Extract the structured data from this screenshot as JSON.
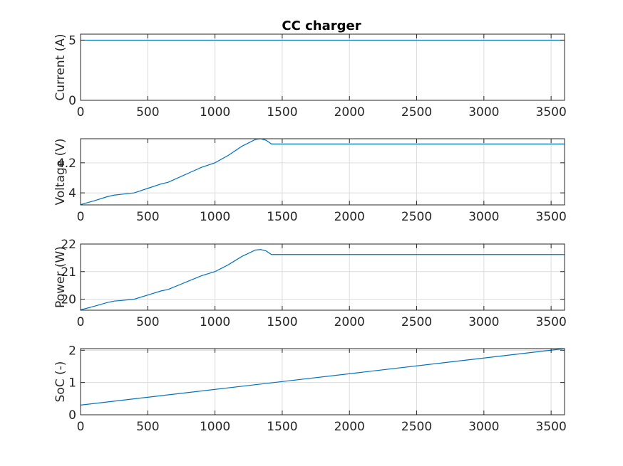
{
  "title": "CC charger",
  "colors": {
    "series": "#0072bd",
    "grid": "#dcdcdc",
    "axis": "#262626"
  },
  "chart_data": [
    {
      "type": "line",
      "ylabel": "Current (A)",
      "xlim": [
        0,
        3600
      ],
      "ylim": [
        0,
        5.5
      ],
      "xticks": [
        0,
        500,
        1000,
        1500,
        2000,
        2500,
        3000,
        3500
      ],
      "yticks": [
        0,
        5
      ],
      "grid": true,
      "series": [
        {
          "x": [
            0,
            3600
          ],
          "y": [
            5,
            5
          ]
        }
      ]
    },
    {
      "type": "line",
      "ylabel": "Voltage (V)",
      "xlim": [
        0,
        3600
      ],
      "ylim": [
        3.92,
        4.36
      ],
      "xticks": [
        0,
        500,
        1000,
        1500,
        2000,
        2500,
        3000,
        3500
      ],
      "yticks": [
        4,
        4.2
      ],
      "ytick_labels": [
        "4",
        "4.2"
      ],
      "grid": true,
      "series": [
        {
          "x": [
            0,
            100,
            200,
            250,
            300,
            400,
            500,
            600,
            650,
            700,
            800,
            900,
            1000,
            1100,
            1200,
            1300,
            1340,
            1380,
            1420,
            3600
          ],
          "y": [
            3.922,
            3.947,
            3.975,
            3.985,
            3.99,
            4.0,
            4.03,
            4.06,
            4.07,
            4.09,
            4.13,
            4.17,
            4.2,
            4.25,
            4.31,
            4.355,
            4.36,
            4.35,
            4.325,
            4.325
          ]
        }
      ]
    },
    {
      "type": "line",
      "ylabel": "Power (W)",
      "xlim": [
        0,
        3600
      ],
      "ylim": [
        19.6,
        22
      ],
      "xticks": [
        0,
        500,
        1000,
        1500,
        2000,
        2500,
        3000,
        3500
      ],
      "yticks": [
        20,
        21,
        22
      ],
      "grid": true,
      "series": [
        {
          "x": [
            0,
            100,
            200,
            250,
            300,
            400,
            500,
            600,
            650,
            700,
            800,
            900,
            1000,
            1100,
            1200,
            1300,
            1340,
            1380,
            1420,
            3600
          ],
          "y": [
            19.61,
            19.74,
            19.88,
            19.93,
            19.95,
            20.0,
            20.15,
            20.3,
            20.35,
            20.45,
            20.65,
            20.85,
            21.0,
            21.25,
            21.55,
            21.78,
            21.8,
            21.75,
            21.62,
            21.62
          ]
        }
      ]
    },
    {
      "type": "line",
      "ylabel": "SoC (-)",
      "xlim": [
        0,
        3600
      ],
      "ylim": [
        0,
        2.05
      ],
      "xticks": [
        0,
        500,
        1000,
        1500,
        2000,
        2500,
        3000,
        3500
      ],
      "yticks": [
        0,
        1,
        2
      ],
      "grid": true,
      "series": [
        {
          "x": [
            0,
            3600
          ],
          "y": [
            0.3,
            2.05
          ]
        }
      ]
    }
  ]
}
